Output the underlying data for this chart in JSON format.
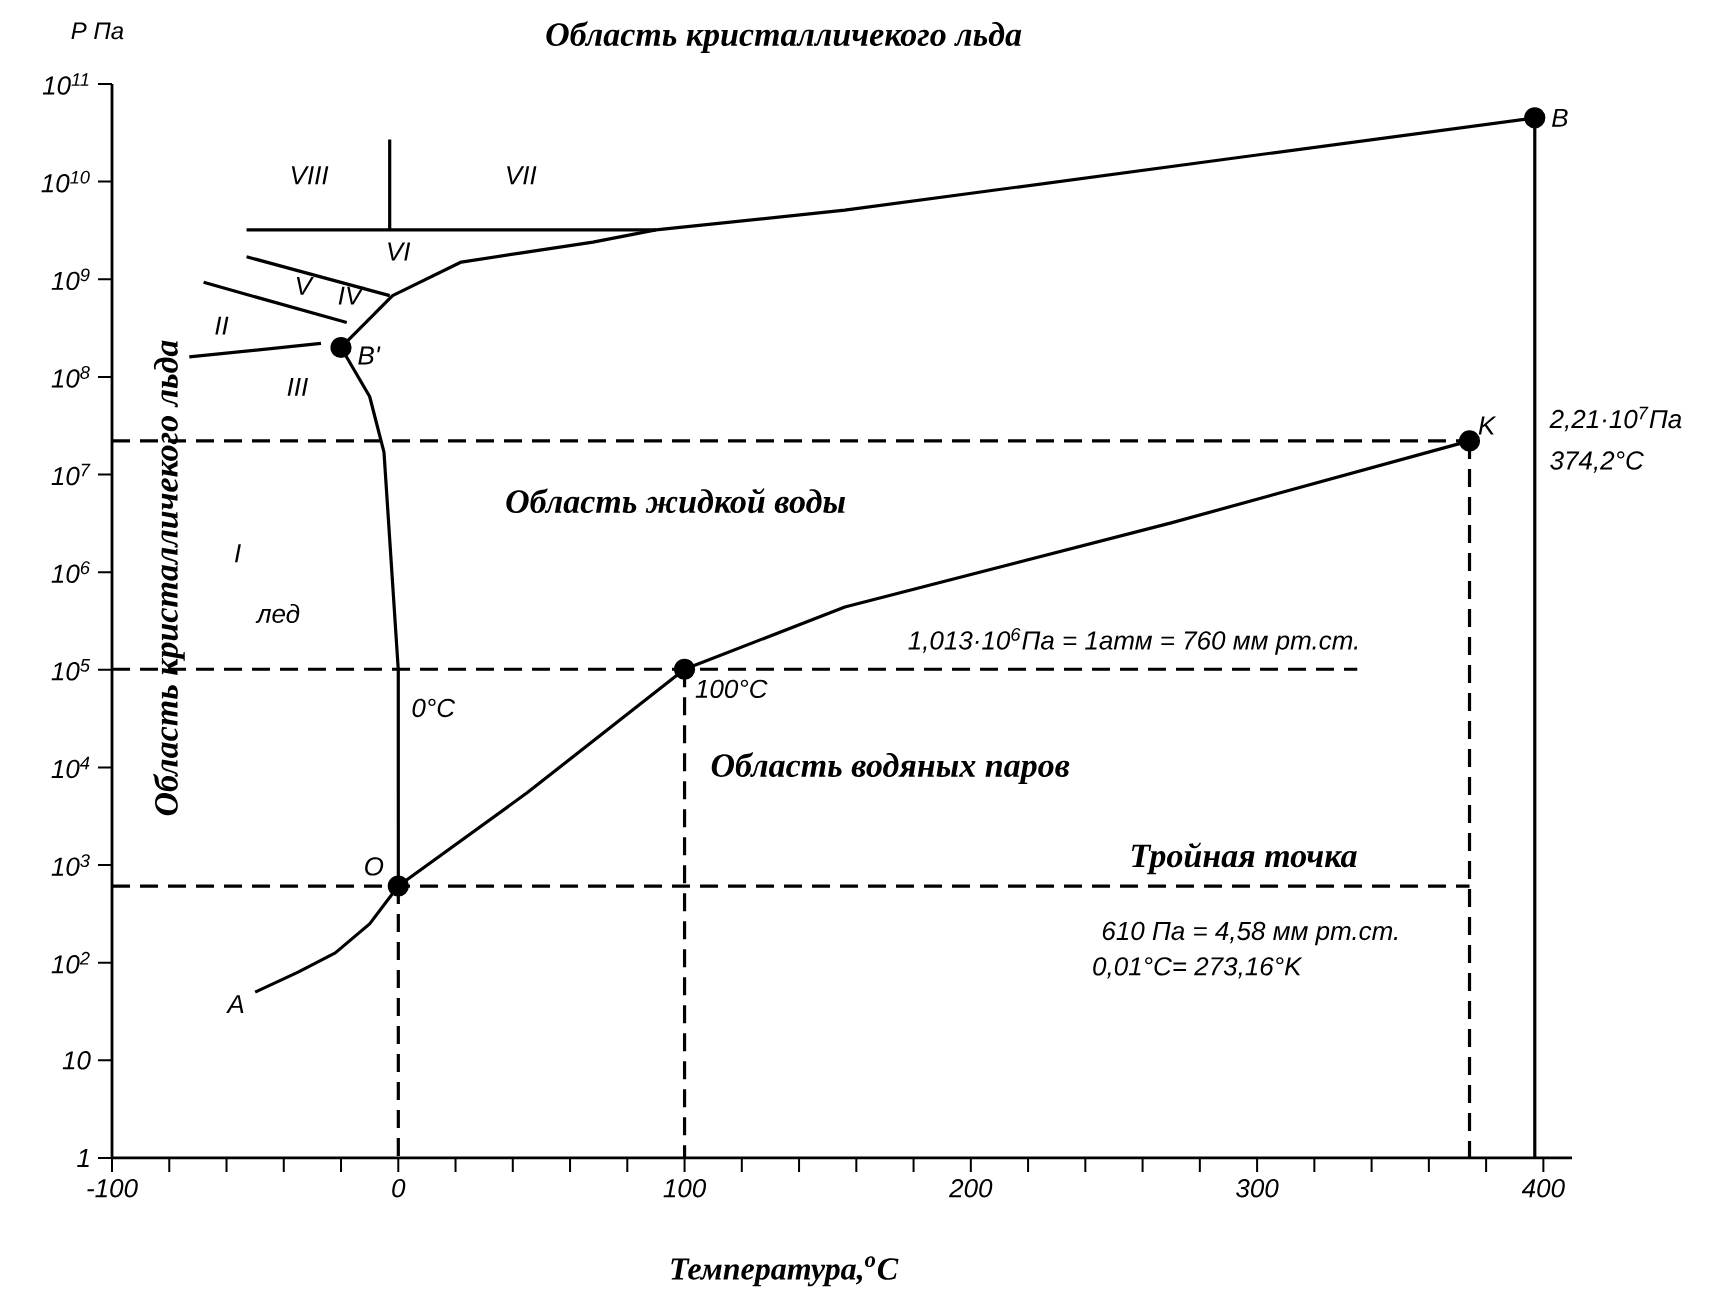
{
  "chart_data": {
    "type": "line",
    "title": "Область кристалличекого льда",
    "xlabel": "Температура,$^{o}$C",
    "ylabel": "P Па",
    "xlim": [
      -100,
      410
    ],
    "ylim": [
      1,
      100000000000.0
    ],
    "log": "y",
    "marker": "none",
    "line_style": "solid",
    "xticks": [
      -100,
      {
        "value": -80,
        "label": null
      },
      {
        "value": -60,
        "label": null
      },
      {
        "value": -40,
        "label": null
      },
      {
        "value": -20,
        "label": null
      },
      0,
      {
        "value": 20,
        "label": null
      },
      {
        "value": 40,
        "label": null
      },
      {
        "value": 60,
        "label": null
      },
      {
        "value": 80,
        "label": null
      },
      100,
      {
        "value": 120,
        "label": null
      },
      {
        "value": 140,
        "label": null
      },
      {
        "value": 160,
        "label": null
      },
      {
        "value": 180,
        "label": null
      },
      200,
      {
        "value": 220,
        "label": null
      },
      {
        "value": 240,
        "label": null
      },
      {
        "value": 260,
        "label": null
      },
      {
        "value": 280,
        "label": null
      },
      300,
      {
        "value": 320,
        "label": null
      },
      {
        "value": 340,
        "label": null
      },
      {
        "value": 360,
        "label": null
      },
      {
        "value": 380,
        "label": null
      },
      400
    ],
    "yticks": [
      1,
      10,
      {
        "value": 100,
        "label": "10$^{2}$"
      },
      {
        "value": 1000,
        "label": "10$^{3}$"
      },
      {
        "value": 10000,
        "label": "10$^{4}$"
      },
      {
        "value": 100000,
        "label": "10$^{5}$"
      },
      {
        "value": 1000000,
        "label": "10$^{6}$"
      },
      {
        "value": 10000000,
        "label": "10$^{7}$"
      },
      {
        "value": 100000000,
        "label": "10$^{8}$"
      },
      {
        "value": 1000000000,
        "label": "10$^{9}$"
      },
      {
        "value": 10000000000,
        "label": "10$^{10}$"
      },
      {
        "value": 100000000000,
        "label": "10$^{11}$"
      }
    ],
    "series": [
      {
        "color": "#000000",
        "x": [
          -50,
          -35,
          -22,
          -10,
          0.01
        ],
        "values": [
          50,
          80,
          126,
          250,
          610
        ]
      },
      {
        "color": "#000000",
        "x": [
          0.01,
          45,
          100,
          156,
          270,
          374.2
        ],
        "values": [
          610,
          5500,
          101300,
          440000,
          3200000,
          22100000
        ]
      },
      {
        "color": "#000000",
        "x": [
          0.01,
          0,
          -5,
          -10,
          -20
        ],
        "values": [
          610,
          100000,
          17000000,
          63000000,
          200000000
        ]
      },
      {
        "color": "#000000",
        "x": [
          -20,
          -2,
          22,
          68,
          90,
          156,
          397
        ],
        "values": [
          200000000,
          680000000,
          1500000000,
          2400000000,
          3200000000,
          5100000000,
          45000000000
        ]
      },
      {
        "color": "#000000",
        "x": [
          -53,
          90
        ],
        "values": [
          3200000000,
          3200000000
        ]
      },
      {
        "color": "#000000",
        "x": [
          -3,
          -3
        ],
        "values": [
          27000000000,
          3200000000
        ]
      },
      {
        "color": "#000000",
        "x": [
          -53,
          -3
        ],
        "values": [
          1700000000,
          680000000
        ]
      },
      {
        "color": "#000000",
        "x": [
          -68,
          -18
        ],
        "values": [
          930000000,
          360000000
        ]
      },
      {
        "color": "#000000",
        "x": [
          -73,
          -27
        ],
        "values": [
          160000000,
          220000000
        ]
      },
      {
        "color": "#000000",
        "x": [
          397,
          397
        ],
        "values": [
          45000000000,
          1
        ]
      },
      {
        "color": "#000000",
        "line_style": "dashed",
        "x": [
          -100,
          374.2
        ],
        "values": [
          22100000,
          22100000
        ]
      },
      {
        "color": "#000000",
        "line_style": "dashed",
        "x": [
          -100,
          335
        ],
        "values": [
          101300,
          101300
        ]
      },
      {
        "color": "#000000",
        "line_style": "dashed",
        "x": [
          -100,
          374.2
        ],
        "values": [
          610,
          610
        ]
      },
      {
        "color": "#000000",
        "line_style": "dashed",
        "x": [
          0.01,
          0.01
        ],
        "values": [
          610,
          1
        ]
      },
      {
        "color": "#000000",
        "line_style": "dashed",
        "x": [
          100,
          100
        ],
        "values": [
          101300,
          1
        ]
      },
      {
        "color": "#000000",
        "line_style": "dashed",
        "x": [
          374.2,
          374.2
        ],
        "values": [
          22100000,
          1
        ]
      },
      {
        "color": "#000000",
        "type": "scatter",
        "marker": "circle",
        "x": [
          0.01,
          100,
          374.2,
          397,
          -20
        ],
        "values": [
          610,
          101300,
          22100000,
          45000000000,
          200000000
        ]
      }
    ],
    "annotations": [
      "Область кристалличекого льда",
      "Область жидкой воды",
      "Область водяных паров",
      "Тройная точка",
      "610 Па = 4,58 мм рт.ст.",
      "0,01°C= 273,16°K",
      "1,013·10$^{6}$Па = 1атм = 760 мм рт.ст.",
      "0°C",
      "I",
      "лед",
      "II",
      "III",
      "V",
      "IV",
      "VI",
      "VII",
      "VIII",
      "2,21·10$^{7}$Па",
      "374,2°C",
      {
        "text": "K",
        "x": 374.2,
        "y": 22100000
      },
      {
        "text": "B",
        "x": 397,
        "y": 45000000000
      },
      {
        "text": "B'",
        "x": -20,
        "y": 200000000
      },
      {
        "text": "O",
        "x": 0.01,
        "y": 610
      },
      {
        "text": "A",
        "x": -50,
        "y": 50
      },
      {
        "text": "100°C",
        "x": 100,
        "y": 101300
      }
    ]
  }
}
